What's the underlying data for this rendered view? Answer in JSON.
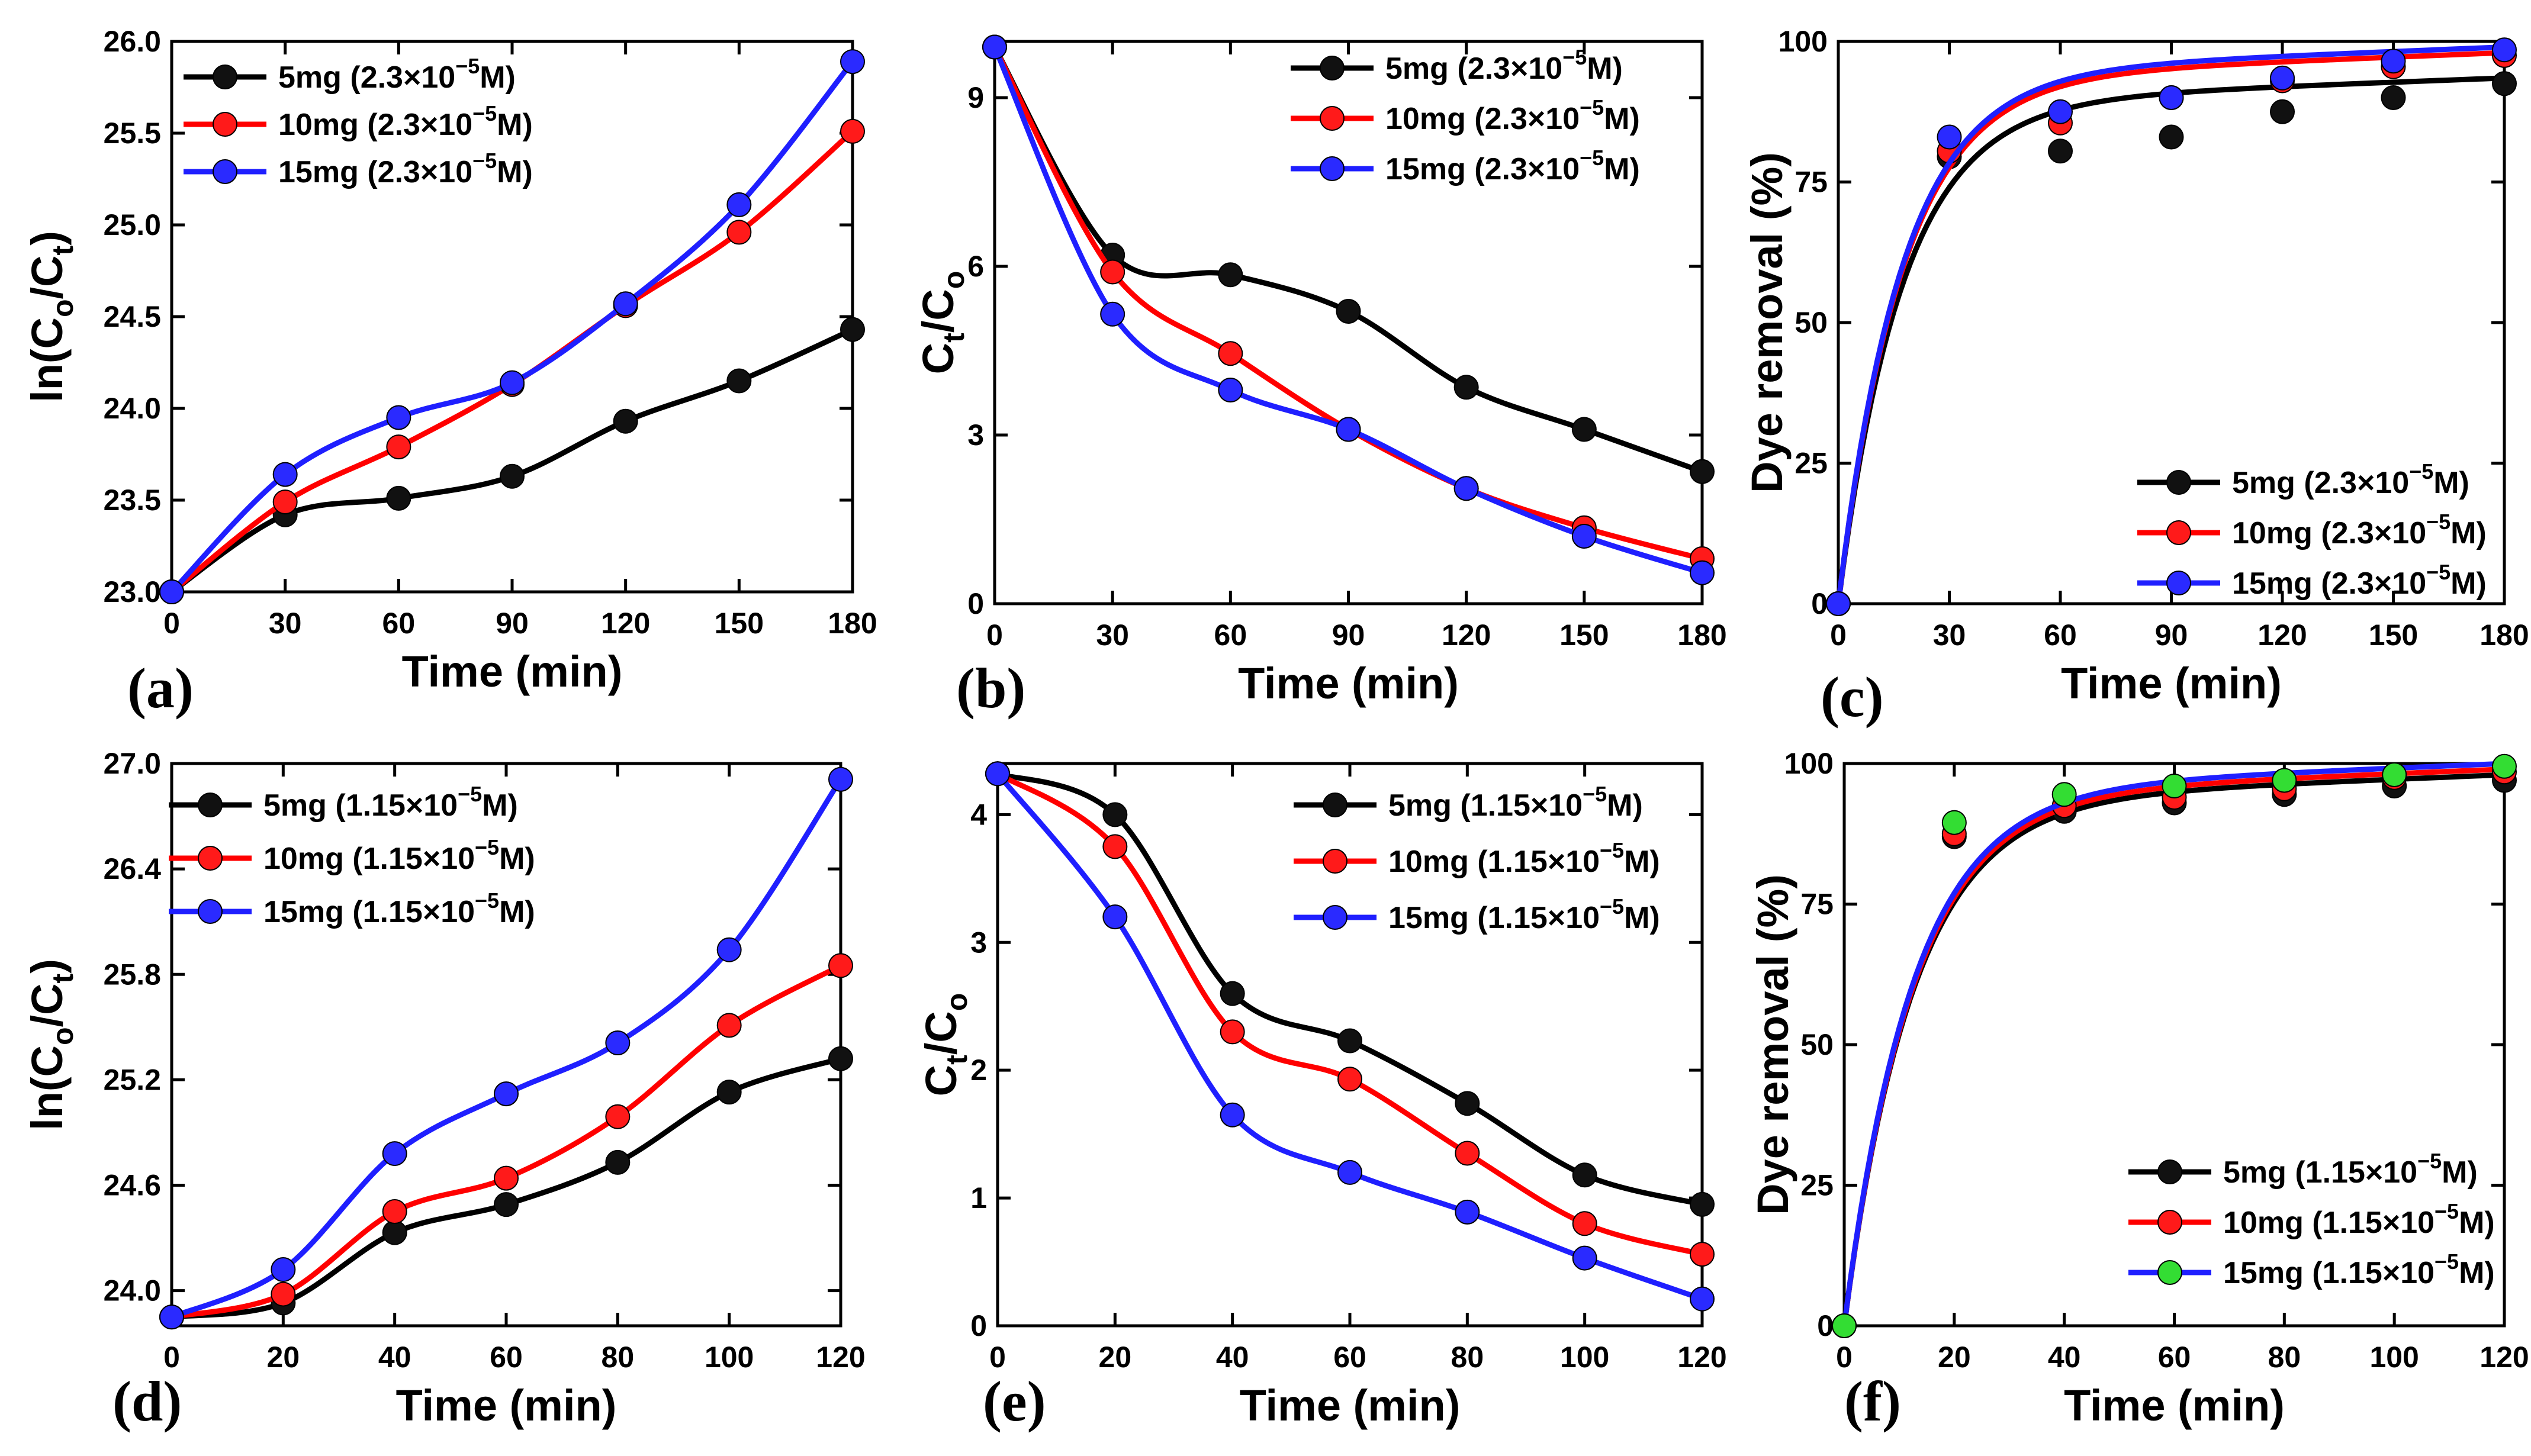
{
  "chart_data": [
    {
      "panel": "(a)",
      "type": "line",
      "xlabel": "Time (min)",
      "ylabel_main": "ln(C",
      "ylabel_sub1": "o",
      "ylabel_mid": "/C",
      "ylabel_sub2": "t",
      "ylabel_end": ")",
      "xlim": [
        0,
        180
      ],
      "xticks": [
        0,
        30,
        60,
        90,
        120,
        150,
        180
      ],
      "xtick_labels": [
        "0",
        "30",
        "60",
        "90",
        "120",
        "150",
        "180"
      ],
      "ylim": [
        23.0,
        26.0
      ],
      "yticks": [
        23.0,
        23.5,
        24.0,
        24.5,
        25.0,
        25.5,
        26.0
      ],
      "ytick_labels": [
        "23.0",
        "23.5",
        "24.0",
        "24.5",
        "25.0",
        "25.5",
        "26.0"
      ],
      "legend": "top-left",
      "series": [
        {
          "name": "5mg",
          "conc": "(2.3×10",
          "exp": "−5",
          "unit": "M)",
          "color": "#000000",
          "marker": "#111111",
          "x": [
            0,
            30,
            60,
            90,
            120,
            150,
            180
          ],
          "values": [
            23.0,
            23.42,
            23.51,
            23.63,
            23.93,
            24.15,
            24.43
          ]
        },
        {
          "name": "10mg",
          "conc": "(2.3×10",
          "exp": "−5",
          "unit": "M)",
          "color": "#ff0000",
          "marker": "#ff1a1a",
          "x": [
            0,
            30,
            60,
            90,
            120,
            150,
            180
          ],
          "values": [
            23.0,
            23.49,
            23.79,
            24.13,
            24.56,
            24.96,
            25.51
          ]
        },
        {
          "name": "15mg",
          "conc": "(2.3×10",
          "exp": "−5",
          "unit": "M)",
          "color": "#1f1fff",
          "marker": "#2a2aff",
          "x": [
            0,
            30,
            60,
            90,
            120,
            150,
            180
          ],
          "values": [
            23.0,
            23.64,
            23.95,
            24.14,
            24.57,
            25.11,
            25.89
          ]
        }
      ]
    },
    {
      "panel": "(b)",
      "type": "line",
      "xlabel": "Time (min)",
      "ylabel_main": "C",
      "ylabel_sub1": "t",
      "ylabel_mid": "/C",
      "ylabel_sub2": "o",
      "ylabel_end": "",
      "xlim": [
        0,
        180
      ],
      "xticks": [
        0,
        30,
        60,
        90,
        120,
        150,
        180
      ],
      "xtick_labels": [
        "0",
        "30",
        "60",
        "90",
        "120",
        "150",
        "180"
      ],
      "ylim": [
        0,
        10
      ],
      "yticks": [
        0,
        3,
        6,
        9
      ],
      "ytick_labels": [
        "0",
        "3",
        "6",
        "9"
      ],
      "legend": "top-right",
      "series": [
        {
          "name": "5mg",
          "conc": "(2.3×10",
          "exp": "−5",
          "unit": "M)",
          "color": "#000000",
          "marker": "#111111",
          "x": [
            0,
            30,
            60,
            90,
            120,
            150,
            180
          ],
          "values": [
            9.9,
            6.2,
            5.85,
            5.2,
            3.85,
            3.1,
            2.35
          ]
        },
        {
          "name": "10mg",
          "conc": "(2.3×10",
          "exp": "−5",
          "unit": "M)",
          "color": "#ff0000",
          "marker": "#ff1a1a",
          "x": [
            0,
            30,
            60,
            90,
            120,
            150,
            180
          ],
          "values": [
            9.9,
            5.9,
            4.45,
            3.1,
            2.05,
            1.35,
            0.8
          ]
        },
        {
          "name": "15mg",
          "conc": "(2.3×10",
          "exp": "−5",
          "unit": "M)",
          "color": "#1f1fff",
          "marker": "#2a2aff",
          "x": [
            0,
            30,
            60,
            90,
            120,
            150,
            180
          ],
          "values": [
            9.9,
            5.15,
            3.8,
            3.1,
            2.05,
            1.2,
            0.55
          ]
        }
      ]
    },
    {
      "panel": "(c)",
      "type": "line",
      "xlabel": "Time (min)",
      "ylabel_main": "Dye removal (%)",
      "ylabel_sub1": "",
      "ylabel_mid": "",
      "ylabel_sub2": "",
      "ylabel_end": "",
      "xlim": [
        0,
        180
      ],
      "xticks": [
        0,
        30,
        60,
        90,
        120,
        150,
        180
      ],
      "xtick_labels": [
        "0",
        "30",
        "60",
        "90",
        "120",
        "150",
        "180"
      ],
      "ylim": [
        0,
        100
      ],
      "yticks": [
        0,
        25,
        50,
        75,
        100
      ],
      "ytick_labels": [
        "0",
        "25",
        "50",
        "75",
        "100"
      ],
      "legend": "bottom-right",
      "series": [
        {
          "name": "5mg",
          "conc": "(2.3×10",
          "exp": "−5",
          "unit": "M)",
          "color": "#000000",
          "marker": "#111111",
          "x": [
            0,
            30,
            60,
            90,
            120,
            150,
            180
          ],
          "values": [
            0,
            79.5,
            80.5,
            83,
            87.5,
            90,
            92.5
          ]
        },
        {
          "name": "10mg",
          "conc": "(2.3×10",
          "exp": "−5",
          "unit": "M)",
          "color": "#ff0000",
          "marker": "#ff1a1a",
          "x": [
            0,
            30,
            60,
            90,
            120,
            150,
            180
          ],
          "values": [
            0,
            80.5,
            85.5,
            90,
            93,
            95.5,
            97.5
          ]
        },
        {
          "name": "15mg",
          "conc": "(2.3×10",
          "exp": "−5",
          "unit": "M)",
          "color": "#1f1fff",
          "marker": "#2a2aff",
          "x": [
            0,
            30,
            60,
            90,
            120,
            150,
            180
          ],
          "values": [
            0,
            83,
            87.5,
            90,
            93.5,
            96.5,
            98.5
          ]
        }
      ]
    },
    {
      "panel": "(d)",
      "type": "line",
      "xlabel": "Time (min)",
      "ylabel_main": "ln(C",
      "ylabel_sub1": "o",
      "ylabel_mid": "/C",
      "ylabel_sub2": "t",
      "ylabel_end": ")",
      "xlim": [
        0,
        120
      ],
      "xticks": [
        0,
        20,
        40,
        60,
        80,
        100,
        120
      ],
      "xtick_labels": [
        "0",
        "20",
        "40",
        "60",
        "80",
        "100",
        "120"
      ],
      "ylim": [
        23.8,
        27.0
      ],
      "yticks": [
        24.0,
        24.6,
        25.2,
        25.8,
        26.4,
        27.0
      ],
      "ytick_labels": [
        "24.0",
        "24.6",
        "25.2",
        "25.8",
        "26.4",
        "27.0"
      ],
      "legend": "top-left",
      "series": [
        {
          "name": "5mg",
          "conc": "(1.15×10",
          "exp": "−5",
          "unit": "M)",
          "color": "#000000",
          "marker": "#111111",
          "x": [
            0,
            20,
            40,
            60,
            80,
            100,
            120
          ],
          "values": [
            23.85,
            23.93,
            24.33,
            24.49,
            24.73,
            25.13,
            25.32
          ]
        },
        {
          "name": "10mg",
          "conc": "(1.15×10",
          "exp": "−5",
          "unit": "M)",
          "color": "#ff0000",
          "marker": "#ff1a1a",
          "x": [
            0,
            20,
            40,
            60,
            80,
            100,
            120
          ],
          "values": [
            23.85,
            23.98,
            24.45,
            24.64,
            24.99,
            25.51,
            25.85
          ]
        },
        {
          "name": "15mg",
          "conc": "(1.15×10",
          "exp": "−5",
          "unit": "M)",
          "color": "#1f1fff",
          "marker": "#2a2aff",
          "x": [
            0,
            20,
            40,
            60,
            80,
            100,
            120
          ],
          "values": [
            23.85,
            24.12,
            24.78,
            25.12,
            25.41,
            25.94,
            26.91
          ]
        }
      ]
    },
    {
      "panel": "(e)",
      "type": "line",
      "xlabel": "Time (min)",
      "ylabel_main": "C",
      "ylabel_sub1": "t",
      "ylabel_mid": "/C",
      "ylabel_sub2": "o",
      "ylabel_end": "",
      "xlim": [
        0,
        120
      ],
      "xticks": [
        0,
        20,
        40,
        60,
        80,
        100,
        120
      ],
      "xtick_labels": [
        "0",
        "20",
        "40",
        "60",
        "80",
        "100",
        "120"
      ],
      "ylim": [
        0,
        4.4
      ],
      "yticks": [
        0,
        1,
        2,
        3,
        4
      ],
      "ytick_labels": [
        "0",
        "1",
        "2",
        "3",
        "4"
      ],
      "legend": "top-right",
      "series": [
        {
          "name": "5mg",
          "conc": "(1.15×10",
          "exp": "−5",
          "unit": "M)",
          "color": "#000000",
          "marker": "#111111",
          "x": [
            0,
            20,
            40,
            60,
            80,
            100,
            120
          ],
          "values": [
            4.32,
            4.0,
            2.6,
            2.23,
            1.74,
            1.18,
            0.95
          ]
        },
        {
          "name": "10mg",
          "conc": "(1.15×10",
          "exp": "−5",
          "unit": "M)",
          "color": "#ff0000",
          "marker": "#ff1a1a",
          "x": [
            0,
            20,
            40,
            60,
            80,
            100,
            120
          ],
          "values": [
            4.32,
            3.75,
            2.3,
            1.93,
            1.35,
            0.8,
            0.56
          ]
        },
        {
          "name": "15mg",
          "conc": "(1.15×10",
          "exp": "−5",
          "unit": "M)",
          "color": "#1f1fff",
          "marker": "#2a2aff",
          "x": [
            0,
            20,
            40,
            60,
            80,
            100,
            120
          ],
          "values": [
            4.32,
            3.2,
            1.65,
            1.2,
            0.89,
            0.53,
            0.21
          ]
        }
      ]
    },
    {
      "panel": "(f)",
      "type": "line",
      "xlabel": "Time (min)",
      "ylabel_main": "Dye removal (%)",
      "ylabel_sub1": "",
      "ylabel_mid": "",
      "ylabel_sub2": "",
      "ylabel_end": "",
      "xlim": [
        0,
        120
      ],
      "xticks": [
        0,
        20,
        40,
        60,
        80,
        100,
        120
      ],
      "xtick_labels": [
        "0",
        "20",
        "40",
        "60",
        "80",
        "100",
        "120"
      ],
      "ylim": [
        0,
        100
      ],
      "yticks": [
        0,
        25,
        50,
        75,
        100
      ],
      "ytick_labels": [
        "0",
        "25",
        "50",
        "75",
        "100"
      ],
      "legend": "bottom-right",
      "series": [
        {
          "name": "5mg",
          "conc": "(1.15×10",
          "exp": "−5",
          "unit": "M)",
          "color": "#000000",
          "marker": "#111111",
          "x": [
            0,
            20,
            40,
            60,
            80,
            100,
            120
          ],
          "values": [
            0,
            87,
            91.5,
            93,
            94.5,
            96,
            97
          ]
        },
        {
          "name": "10mg",
          "conc": "(1.15×10",
          "exp": "−5",
          "unit": "M)",
          "color": "#ff0000",
          "marker": "#ff1a1a",
          "x": [
            0,
            20,
            40,
            60,
            80,
            100,
            120
          ],
          "values": [
            0,
            87.5,
            92.5,
            94,
            95.5,
            97.5,
            98.5
          ]
        },
        {
          "name": "15mg",
          "conc": "(1.15×10",
          "exp": "−5",
          "unit": "M)",
          "color": "#1f1fff",
          "marker": "#33dd33",
          "x": [
            0,
            20,
            40,
            60,
            80,
            100,
            120
          ],
          "values": [
            0,
            89.5,
            94.5,
            96,
            97,
            98,
            99.5
          ]
        }
      ]
    }
  ]
}
